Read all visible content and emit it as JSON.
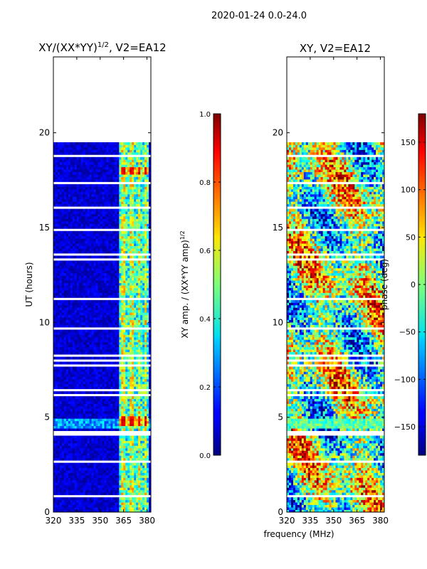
{
  "figure": {
    "suptitle": "2020-01-24 0.0-24.0",
    "shared_xlabel": "frequency (MHz)"
  },
  "chart_data": [
    {
      "type": "heatmap",
      "title_main": "XY/(XX*YY)",
      "title_sup": "1/2",
      "title_tail": ", V2=EA12",
      "ylabel": "UT (hours)",
      "xlim": [
        320,
        382.5
      ],
      "ylim": [
        0,
        24
      ],
      "xticks": [
        "320",
        "335",
        "350",
        "365",
        "380"
      ],
      "xtick_values": [
        320,
        335,
        350,
        365,
        380
      ],
      "yticks": [
        "0",
        "5",
        "10",
        "15",
        "20"
      ],
      "ytick_values": [
        0,
        5,
        10,
        15,
        20
      ],
      "data_extent_hours": [
        0.0,
        19.5
      ],
      "colorbar": {
        "label_main": "XY amp. / (XX*YY amp)",
        "label_sup": "1/2",
        "range": [
          0.0,
          1.0
        ],
        "ticks": [
          "0.0",
          "0.2",
          "0.4",
          "0.6",
          "0.8",
          "1.0"
        ],
        "tick_values": [
          0.0,
          0.2,
          0.4,
          0.6,
          0.8,
          1.0
        ],
        "colormap": "jet"
      }
    },
    {
      "type": "heatmap",
      "title": "XY, V2=EA12",
      "xlim": [
        320,
        382.5
      ],
      "ylim": [
        0,
        24
      ],
      "xticks": [
        "320",
        "335",
        "350",
        "365",
        "380"
      ],
      "xtick_values": [
        320,
        335,
        350,
        365,
        380
      ],
      "yticks": [
        "0",
        "5",
        "10",
        "15",
        "20"
      ],
      "ytick_values": [
        0,
        5,
        10,
        15,
        20
      ],
      "data_extent_hours": [
        0.0,
        19.5
      ],
      "colorbar": {
        "label": "phase (deg)",
        "range": [
          -180,
          180
        ],
        "ticks": [
          "−150",
          "−100",
          "−50",
          "0",
          "50",
          "100",
          "150"
        ],
        "tick_values": [
          -150,
          -100,
          -50,
          0,
          50,
          100,
          150
        ],
        "colormap": "jet"
      }
    }
  ]
}
